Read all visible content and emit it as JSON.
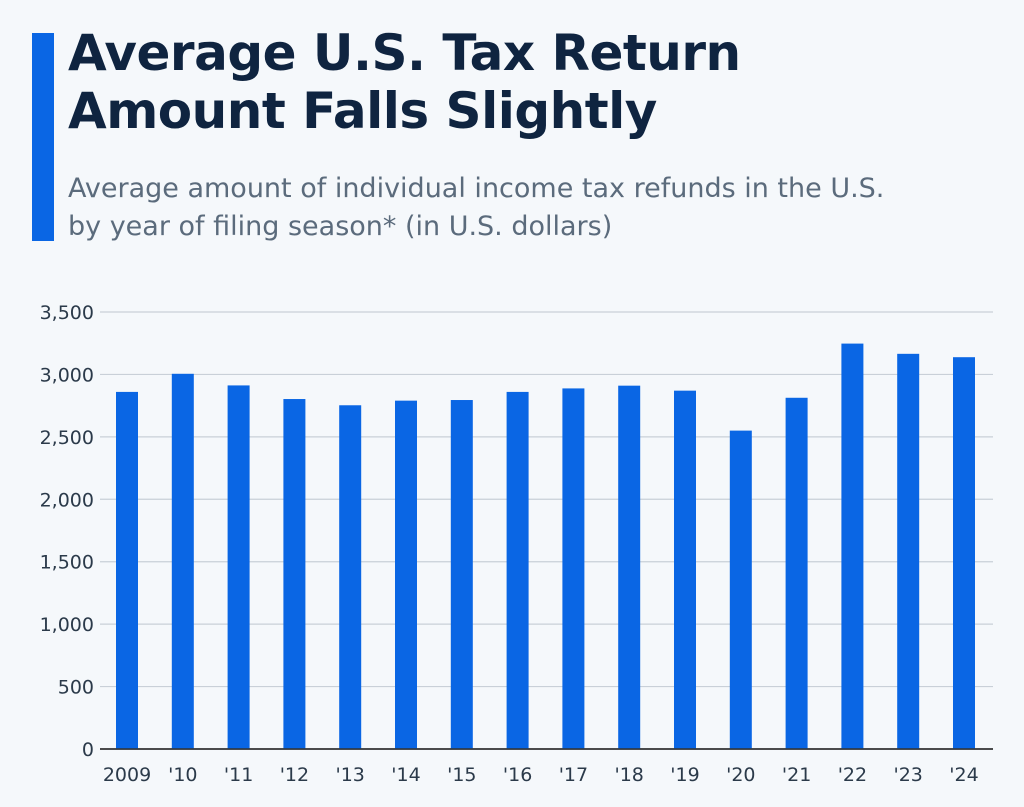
{
  "header": {
    "title_line1": "Average U.S. Tax Return",
    "title_line2": "Amount Falls Slightly",
    "subtitle_line1": "Average amount of individual income tax refunds in the U.S.",
    "subtitle_line2": "by year of filing season* (in U.S. dollars)"
  },
  "colors": {
    "accent": "#0a66e4",
    "bar": "#0a66e4",
    "title": "#0f2440",
    "subtitle": "#5b6b7c"
  },
  "chart_data": {
    "type": "bar",
    "title": "Average U.S. Tax Return Amount Falls Slightly",
    "subtitle": "Average amount of individual income tax refunds in the U.S. by year of filing season* (in U.S. dollars)",
    "categories": [
      "2009",
      "'10",
      "'11",
      "'12",
      "'13",
      "'14",
      "'15",
      "'16",
      "'17",
      "'18",
      "'19",
      "'20",
      "'21",
      "'22",
      "'23",
      "'24"
    ],
    "values": [
      2860,
      3005,
      2912,
      2803,
      2753,
      2790,
      2795,
      2860,
      2888,
      2910,
      2870,
      2550,
      2813,
      3247,
      3165,
      3138
    ],
    "ylim": [
      0,
      3500
    ],
    "yticks": [
      0,
      500,
      1000,
      1500,
      2000,
      2500,
      3000,
      3500
    ],
    "ytick_labels": [
      "0",
      "500",
      "1,000",
      "1,500",
      "2,000",
      "2,500",
      "3,000",
      "3,500"
    ],
    "grid": true,
    "xlabel": "",
    "ylabel": ""
  }
}
